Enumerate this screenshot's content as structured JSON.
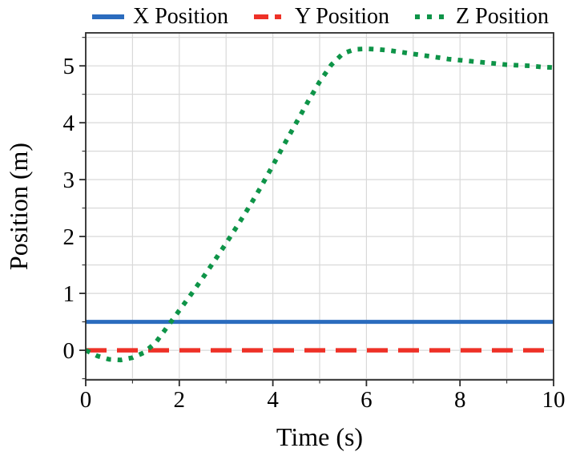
{
  "figure": {
    "background": "#ffffff"
  },
  "chart_data": {
    "type": "line",
    "title": "",
    "xlabel": "Time (s)",
    "ylabel": "Position (m)",
    "xlim": [
      0,
      10
    ],
    "ylim": [
      -0.52,
      5.58
    ],
    "xticks": {
      "major": [
        0,
        2,
        4,
        6,
        8,
        10
      ],
      "labels": [
        "0",
        "2",
        "4",
        "6",
        "8",
        "10"
      ],
      "minor": [
        1,
        3,
        5,
        7,
        9
      ]
    },
    "yticks": {
      "major": [
        0,
        1,
        2,
        3,
        4,
        5
      ],
      "labels": [
        "0",
        "1",
        "2",
        "3",
        "4",
        "5"
      ],
      "minor": [
        -0.5,
        0.5,
        1.5,
        2.5,
        3.5,
        4.5,
        5.5
      ]
    },
    "grid": {
      "show": true,
      "which": "both",
      "color": "#d9d9d9"
    },
    "legend_position": "top-center",
    "style": {
      "spine_color": "#2b2b2b",
      "text_color": "#000000"
    },
    "x": [
      0,
      0.25,
      0.5,
      0.75,
      1,
      1.25,
      1.5,
      1.75,
      2,
      2.25,
      2.5,
      2.75,
      3,
      3.25,
      3.5,
      3.75,
      4,
      4.25,
      4.5,
      4.75,
      5,
      5.25,
      5.5,
      5.75,
      6,
      6.25,
      6.5,
      6.75,
      7,
      7.25,
      7.5,
      7.75,
      8,
      8.25,
      8.5,
      8.75,
      9,
      9.25,
      9.5,
      9.75,
      10
    ],
    "series": [
      {
        "name": "X Position",
        "color": "#2b6cbe",
        "line_style": "solid",
        "constant": 0.5
      },
      {
        "name": "Y Position",
        "color": "#ee3127",
        "line_style": "dashed",
        "constant": 0.0
      },
      {
        "name": "Z Position",
        "color": "#0e9448",
        "line_style": "dotted",
        "values": [
          0.0,
          -0.1,
          -0.16,
          -0.17,
          -0.13,
          -0.04,
          0.14,
          0.42,
          0.7,
          0.98,
          1.27,
          1.57,
          1.88,
          2.2,
          2.53,
          2.88,
          3.25,
          3.63,
          4.0,
          4.37,
          4.72,
          5.02,
          5.22,
          5.29,
          5.3,
          5.29,
          5.27,
          5.24,
          5.21,
          5.18,
          5.15,
          5.12,
          5.1,
          5.08,
          5.06,
          5.04,
          5.02,
          5.01,
          5.0,
          4.98,
          4.97
        ]
      }
    ]
  }
}
